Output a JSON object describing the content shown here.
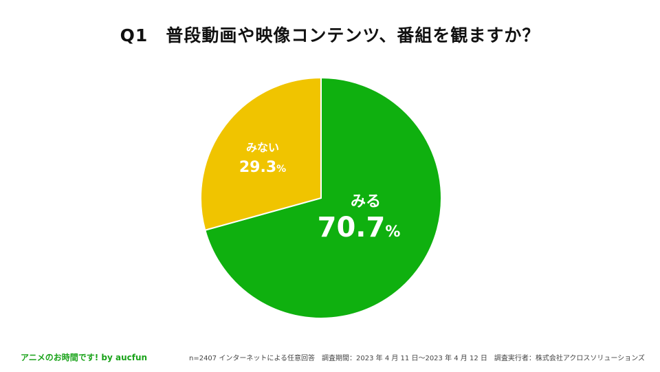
{
  "title": "Q1　普段動画や映像コンテンツ、番組を観ますか？",
  "chart_data": {
    "type": "pie",
    "categories": [
      "みる",
      "みない"
    ],
    "values": [
      70.7,
      29.3
    ],
    "unit": "%",
    "colors": [
      "#0fb00f",
      "#f0c400"
    ],
    "labels": [
      {
        "name": "みる",
        "value": "70.7",
        "unit": "%"
      },
      {
        "name": "みない",
        "value": "29.3",
        "unit": "%"
      }
    ]
  },
  "footer": {
    "brand": "アニメのお時間です! by aucfun",
    "note": "n=2407 インターネットによる任意回答　調査期間：2023 年 4 月 11 日〜2023 年 4 月 12 日　調査実行者：株式会社アクロスソリューションズ"
  }
}
